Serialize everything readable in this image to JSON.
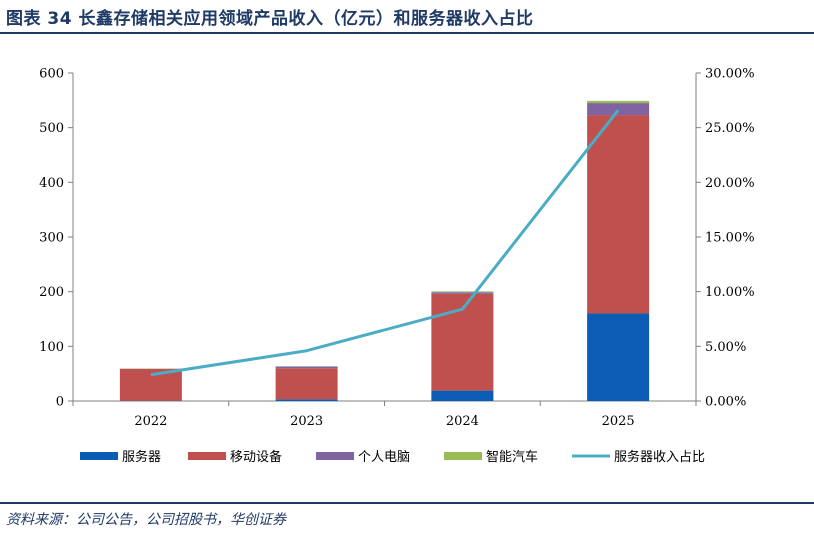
{
  "header": {
    "title": "图表 34 长鑫存储相关应用领域产品收入（亿元）和服务器收入占比"
  },
  "footer": {
    "source": "资料来源：公司公告，公司招股书，华创证券"
  },
  "chart_data": {
    "type": "bar",
    "stacked": true,
    "title": "图表 34 长鑫存储相关应用领域产品收入（亿元）和服务器收入占比",
    "categories": [
      "2022",
      "2023",
      "2024",
      "2025"
    ],
    "series": [
      {
        "name": "服务器",
        "axis": "left",
        "color": "#0a5cb5",
        "values": [
          0.5,
          3,
          19,
          160
        ]
      },
      {
        "name": "移动设备",
        "axis": "left",
        "color": "#c0504d",
        "values": [
          58,
          57,
          177,
          363
        ]
      },
      {
        "name": "个人电脑",
        "axis": "left",
        "color": "#8064a2",
        "values": [
          0.5,
          3,
          3,
          22
        ]
      },
      {
        "name": "智能汽车",
        "axis": "left",
        "color": "#9bbb59",
        "values": [
          0.5,
          0.5,
          1.5,
          4
        ]
      },
      {
        "name": "服务器收入占比",
        "axis": "right",
        "type": "line",
        "color": "#4bacc6",
        "values": [
          2.4,
          4.6,
          8.4,
          26.6
        ]
      }
    ],
    "y_left": {
      "min": 0,
      "max": 600,
      "ticks": [
        "0",
        "100",
        "200",
        "300",
        "400",
        "500",
        "600"
      ]
    },
    "y_right": {
      "min": 0,
      "max": 30,
      "ticks": [
        "0.00%",
        "5.00%",
        "10.00%",
        "15.00%",
        "20.00%",
        "25.00%",
        "30.00%"
      ]
    },
    "grid": false,
    "legend": "bottom"
  }
}
